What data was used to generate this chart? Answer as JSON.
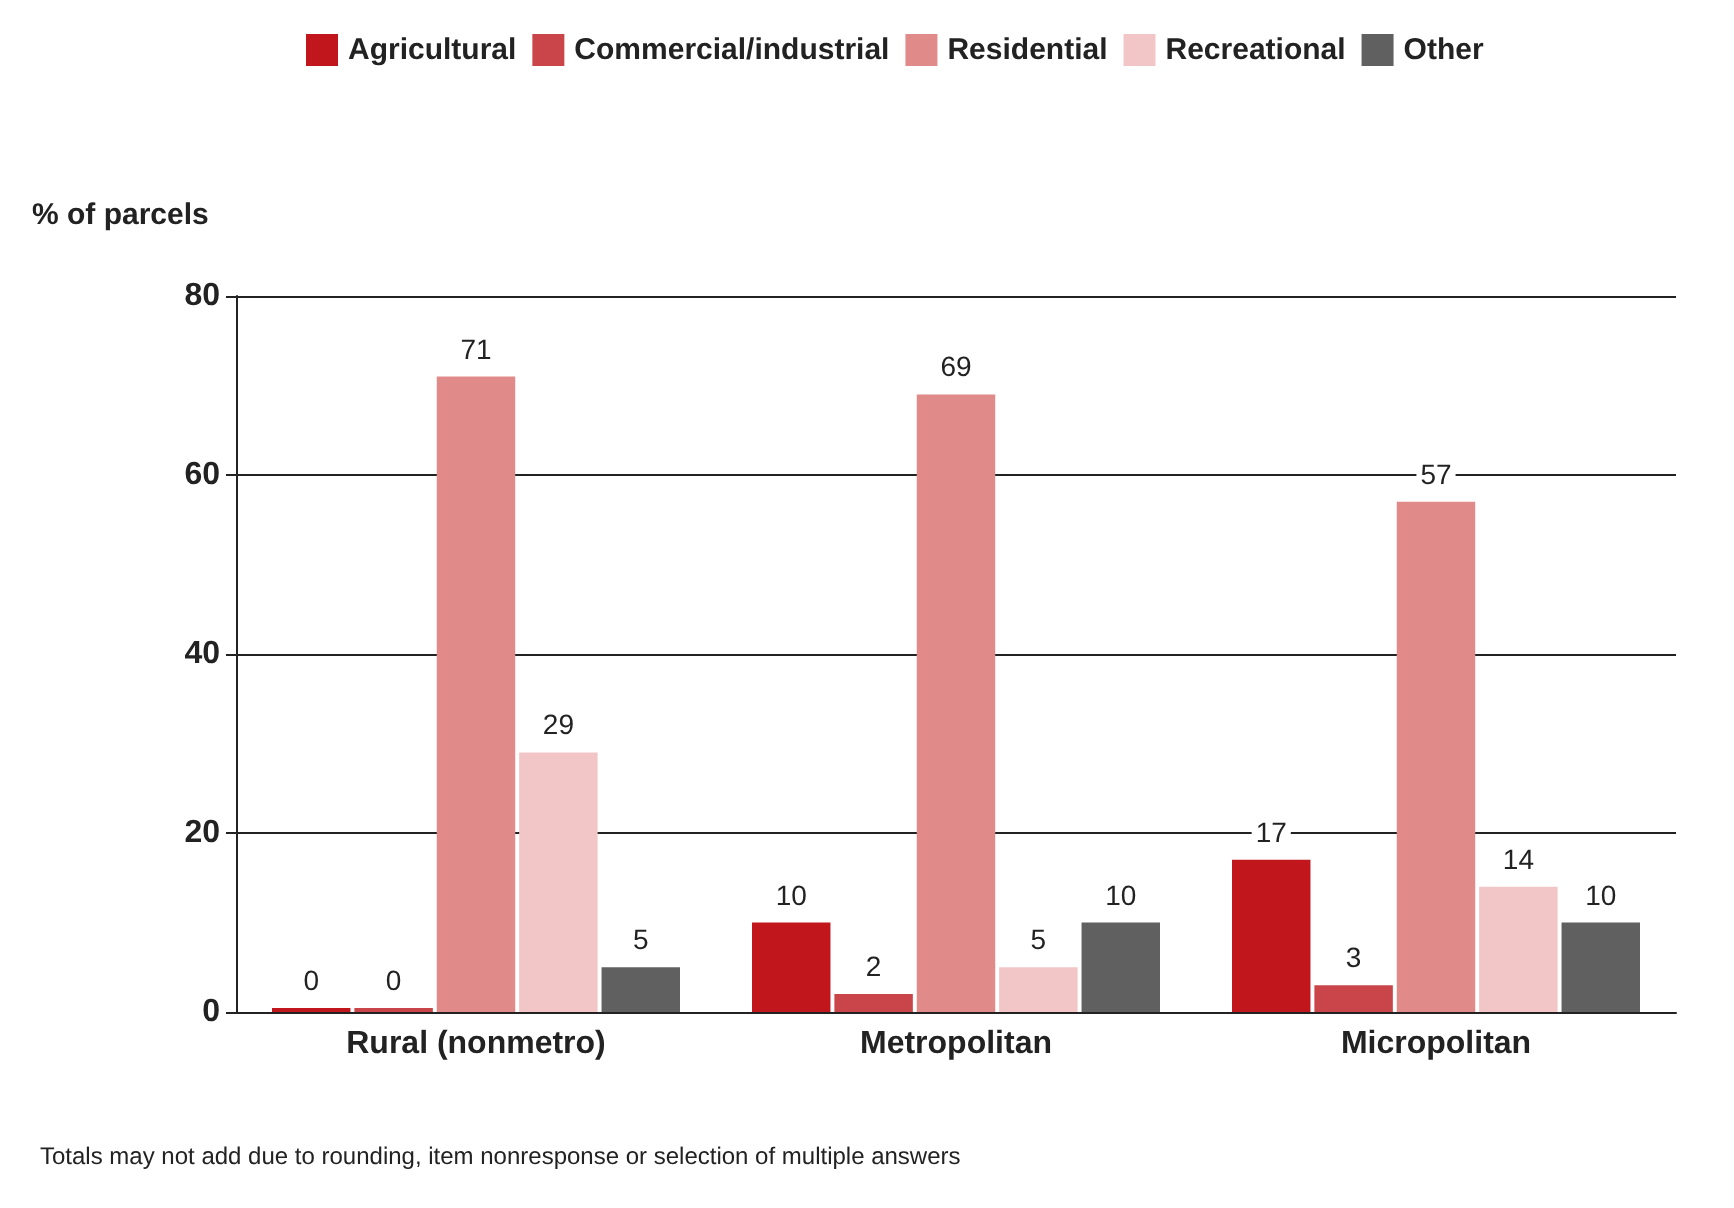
{
  "chart_data": {
    "type": "bar",
    "ylabel": "% of parcels",
    "categories": [
      "Rural (nonmetro)",
      "Metropolitan",
      "Micropolitan"
    ],
    "series": [
      {
        "name": "Agricultural",
        "color": "#c0161c",
        "values": [
          0,
          10,
          17
        ]
      },
      {
        "name": "Commercial/industrial",
        "color": "#c9454a",
        "values": [
          0,
          2,
          3
        ]
      },
      {
        "name": "Residential",
        "color": "#e08a8a",
        "values": [
          71,
          69,
          57
        ]
      },
      {
        "name": "Recreational",
        "color": "#f2c6c6",
        "values": [
          29,
          5,
          14
        ]
      },
      {
        "name": "Other",
        "color": "#606060",
        "values": [
          5,
          10,
          10
        ]
      }
    ],
    "ylim": [
      0,
      80
    ],
    "yticks": [
      0,
      20,
      40,
      60,
      80
    ],
    "grid": "y",
    "legend": "top",
    "data_labels": true,
    "annotations": [
      "Totals may not add due to rounding, item nonresponse or selection of multiple answers"
    ]
  }
}
